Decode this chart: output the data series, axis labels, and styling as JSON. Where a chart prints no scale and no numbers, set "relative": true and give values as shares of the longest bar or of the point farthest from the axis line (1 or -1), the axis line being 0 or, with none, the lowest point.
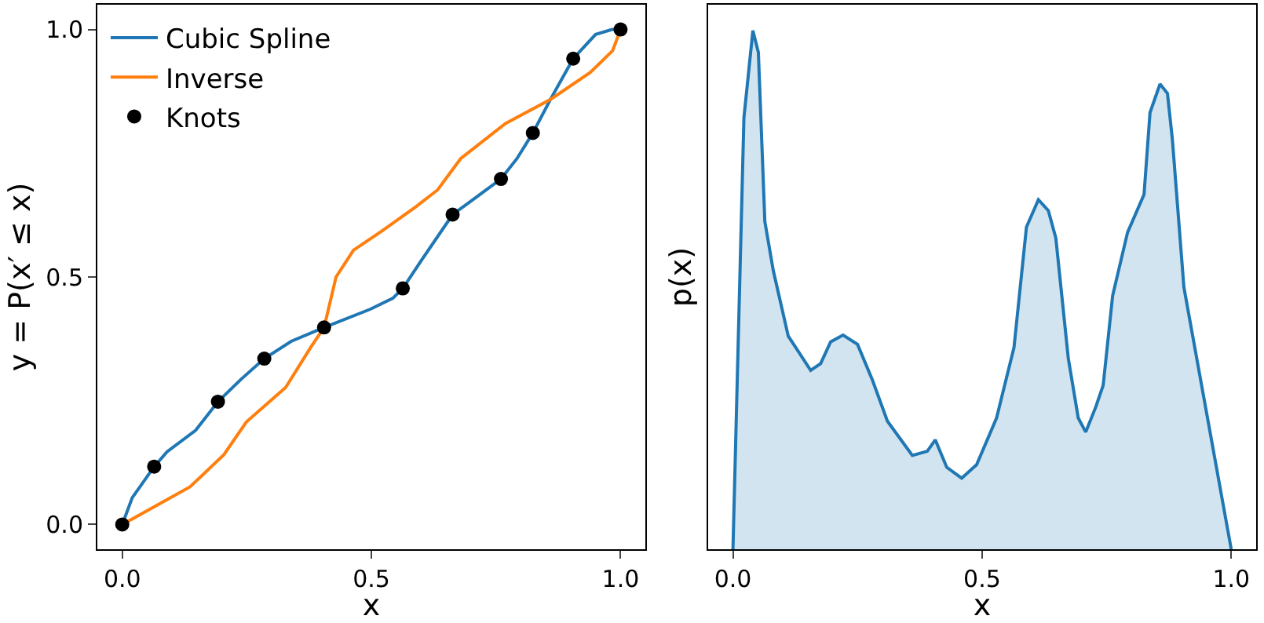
{
  "chart_data": [
    {
      "type": "line",
      "xlabel": "x",
      "ylabel": "y = P(x′ ≤ x)",
      "xlim": [
        -0.05,
        1.05
      ],
      "ylim": [
        -0.05,
        1.05
      ],
      "xticks": [
        {
          "value": 0,
          "label": "0.0"
        },
        {
          "value": 0.5,
          "label": "0.5"
        },
        {
          "value": 1,
          "label": "1.0"
        }
      ],
      "yticks": [
        {
          "value": 0,
          "label": "0.0"
        },
        {
          "value": 0.5,
          "label": "0.5"
        },
        {
          "value": 1,
          "label": "1.0"
        }
      ],
      "legend": "top left",
      "series": [
        {
          "name": "Cubic Spline",
          "type": "line",
          "color": "#1f77b4",
          "line_style": "solid",
          "x": [
            0,
            0.02,
            0.064,
            0.09,
            0.147,
            0.192,
            0.238,
            0.285,
            0.339,
            0.405,
            0.498,
            0.543,
            0.563,
            0.6,
            0.663,
            0.713,
            0.76,
            0.792,
            0.824,
            0.86,
            0.905,
            0.95,
            0.983,
            1
          ],
          "values": [
            0,
            0.054,
            0.117,
            0.147,
            0.19,
            0.248,
            0.293,
            0.335,
            0.37,
            0.398,
            0.435,
            0.457,
            0.477,
            0.533,
            0.626,
            0.663,
            0.698,
            0.739,
            0.791,
            0.86,
            0.941,
            0.99,
            1.0,
            1
          ]
        },
        {
          "name": "Inverse",
          "type": "line",
          "color": "#ff7f0e",
          "line_style": "solid",
          "x": [
            0,
            0.068,
            0.136,
            0.204,
            0.249,
            0.328,
            0.379,
            0.405,
            0.429,
            0.464,
            0.52,
            0.588,
            0.633,
            0.679,
            0.769,
            0.86,
            0.939,
            0.984,
            1
          ],
          "values": [
            0,
            0.038,
            0.076,
            0.141,
            0.207,
            0.277,
            0.359,
            0.398,
            0.5,
            0.554,
            0.592,
            0.641,
            0.676,
            0.739,
            0.81,
            0.859,
            0.913,
            0.957,
            1
          ]
        },
        {
          "name": "Knots",
          "type": "scatter",
          "color": "#000000",
          "marker": "circle",
          "x": [
            0,
            0.064,
            0.192,
            0.285,
            0.405,
            0.563,
            0.663,
            0.76,
            0.824,
            0.905,
            1
          ],
          "values": [
            0,
            0.117,
            0.248,
            0.335,
            0.398,
            0.477,
            0.626,
            0.698,
            0.791,
            0.941,
            1
          ]
        }
      ]
    },
    {
      "type": "area",
      "relative": true,
      "xlabel": "x",
      "ylabel": "p(x)",
      "xlim": [
        -0.05,
        1.05
      ],
      "xticks": [
        {
          "value": 0,
          "label": "0.0"
        },
        {
          "value": 0.5,
          "label": "0.5"
        },
        {
          "value": 1,
          "label": "1.0"
        }
      ],
      "tick_labels": "x",
      "series": [
        {
          "color": "#1f77b4",
          "x": [
            0,
            0.022,
            0.04,
            0.051,
            0.064,
            0.081,
            0.111,
            0.156,
            0.176,
            0.196,
            0.221,
            0.25,
            0.28,
            0.31,
            0.36,
            0.39,
            0.406,
            0.429,
            0.459,
            0.489,
            0.529,
            0.564,
            0.589,
            0.613,
            0.633,
            0.648,
            0.673,
            0.693,
            0.708,
            0.728,
            0.743,
            0.762,
            0.792,
            0.825,
            0.837,
            0.857,
            0.872,
            0.882,
            0.905,
            1
          ],
          "values": [
            0,
            0.832,
            1.0,
            0.958,
            0.632,
            0.537,
            0.411,
            0.345,
            0.358,
            0.4,
            0.413,
            0.395,
            0.326,
            0.247,
            0.181,
            0.189,
            0.211,
            0.158,
            0.137,
            0.163,
            0.253,
            0.389,
            0.621,
            0.674,
            0.653,
            0.6,
            0.368,
            0.253,
            0.226,
            0.274,
            0.316,
            0.489,
            0.611,
            0.684,
            0.842,
            0.897,
            0.879,
            0.789,
            0.505,
            0
          ]
        }
      ]
    }
  ]
}
